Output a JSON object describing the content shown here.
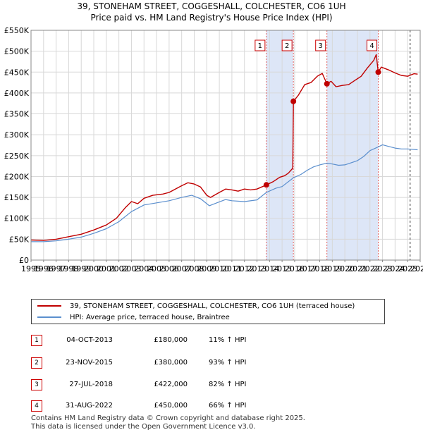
{
  "title_line1": "39, STONEHAM STREET, COGGESHALL, COLCHESTER, CO6 1UH",
  "title_line2": "Price paid vs. HM Land Registry's House Price Index (HPI)",
  "colors": {
    "property": "#c00000",
    "hpi": "#5b8fce",
    "band": "#dde6f7",
    "marker_box": "#cc0000"
  },
  "chart_data": {
    "type": "line",
    "xlim": [
      1995,
      2026
    ],
    "ylim": [
      0,
      550000
    ],
    "yticks": [
      0,
      50000,
      100000,
      150000,
      200000,
      250000,
      300000,
      350000,
      400000,
      450000,
      500000,
      550000
    ],
    "ytick_labels": [
      "£0",
      "£50K",
      "£100K",
      "£150K",
      "£200K",
      "£250K",
      "£300K",
      "£350K",
      "£400K",
      "£450K",
      "£500K",
      "£550K"
    ],
    "xticks": [
      1995,
      1996,
      1997,
      1998,
      1999,
      2000,
      2001,
      2002,
      2003,
      2004,
      2005,
      2006,
      2007,
      2008,
      2009,
      2010,
      2011,
      2012,
      2013,
      2014,
      2015,
      2016,
      2017,
      2018,
      2019,
      2020,
      2021,
      2022,
      2023,
      2024,
      2025,
      2026
    ],
    "xtick_labels": [
      "1995",
      "1996",
      "1997",
      "1998",
      "1999",
      "2000",
      "2001",
      "2002",
      "2003",
      "2004",
      "2005",
      "2006",
      "2007",
      "2008",
      "2009",
      "2010",
      "2011",
      "2012",
      "2013",
      "2014",
      "2015",
      "2016",
      "2017",
      "2018",
      "2019",
      "2020",
      "2021",
      "2022",
      "2023",
      "2024",
      "2025",
      "2026"
    ],
    "series": [
      {
        "name": "39, STONEHAM STREET, COGGESHALL, COLCHESTER, CO6 1UH (terraced house)",
        "points": [
          [
            1995.0,
            48000
          ],
          [
            1996.0,
            47000
          ],
          [
            1997.0,
            50000
          ],
          [
            1998.0,
            56000
          ],
          [
            1999.0,
            62000
          ],
          [
            2000.0,
            72000
          ],
          [
            2001.0,
            84000
          ],
          [
            2001.8,
            100000
          ],
          [
            2002.5,
            125000
          ],
          [
            2003.0,
            140000
          ],
          [
            2003.5,
            135000
          ],
          [
            2004.0,
            148000
          ],
          [
            2004.7,
            155000
          ],
          [
            2005.5,
            158000
          ],
          [
            2006.0,
            162000
          ],
          [
            2006.5,
            170000
          ],
          [
            2007.0,
            178000
          ],
          [
            2007.5,
            185000
          ],
          [
            2008.0,
            182000
          ],
          [
            2008.5,
            175000
          ],
          [
            2009.0,
            155000
          ],
          [
            2009.3,
            150000
          ],
          [
            2010.0,
            162000
          ],
          [
            2010.5,
            170000
          ],
          [
            2011.0,
            168000
          ],
          [
            2011.5,
            165000
          ],
          [
            2012.0,
            170000
          ],
          [
            2012.5,
            168000
          ],
          [
            2013.0,
            170000
          ],
          [
            2013.75,
            180000
          ],
          [
            2014.3,
            188000
          ],
          [
            2014.8,
            198000
          ],
          [
            2015.2,
            202000
          ],
          [
            2015.5,
            208000
          ],
          [
            2015.85,
            220000
          ],
          [
            2015.9,
            380000
          ],
          [
            2016.3,
            395000
          ],
          [
            2016.8,
            420000
          ],
          [
            2017.3,
            425000
          ],
          [
            2017.8,
            440000
          ],
          [
            2018.2,
            447000
          ],
          [
            2018.57,
            422000
          ],
          [
            2018.9,
            428000
          ],
          [
            2019.3,
            415000
          ],
          [
            2019.8,
            418000
          ],
          [
            2020.3,
            420000
          ],
          [
            2020.8,
            430000
          ],
          [
            2021.3,
            440000
          ],
          [
            2021.8,
            460000
          ],
          [
            2022.3,
            478000
          ],
          [
            2022.5,
            492000
          ],
          [
            2022.66,
            450000
          ],
          [
            2022.9,
            462000
          ],
          [
            2023.5,
            455000
          ],
          [
            2024.0,
            448000
          ],
          [
            2024.5,
            442000
          ],
          [
            2025.0,
            440000
          ],
          [
            2025.5,
            446000
          ],
          [
            2025.8,
            445000
          ]
        ]
      },
      {
        "name": "HPI: Average price, terraced house, Braintree",
        "points": [
          [
            1995.0,
            44000
          ],
          [
            1996.0,
            44000
          ],
          [
            1997.0,
            46000
          ],
          [
            1998.0,
            50000
          ],
          [
            1999.0,
            55000
          ],
          [
            2000.0,
            64000
          ],
          [
            2001.0,
            75000
          ],
          [
            2002.0,
            92000
          ],
          [
            2003.0,
            116000
          ],
          [
            2004.0,
            132000
          ],
          [
            2005.0,
            137000
          ],
          [
            2006.0,
            142000
          ],
          [
            2007.0,
            150000
          ],
          [
            2007.8,
            155000
          ],
          [
            2008.5,
            147000
          ],
          [
            2009.2,
            130000
          ],
          [
            2009.8,
            137000
          ],
          [
            2010.5,
            145000
          ],
          [
            2011.0,
            142000
          ],
          [
            2012.0,
            140000
          ],
          [
            2013.0,
            144000
          ],
          [
            2013.75,
            162000
          ],
          [
            2014.5,
            172000
          ],
          [
            2015.0,
            176000
          ],
          [
            2015.9,
            197000
          ],
          [
            2016.5,
            205000
          ],
          [
            2017.0,
            215000
          ],
          [
            2017.5,
            223000
          ],
          [
            2018.0,
            228000
          ],
          [
            2018.57,
            232000
          ],
          [
            2019.0,
            230000
          ],
          [
            2019.5,
            227000
          ],
          [
            2020.0,
            228000
          ],
          [
            2020.5,
            233000
          ],
          [
            2021.0,
            238000
          ],
          [
            2021.5,
            248000
          ],
          [
            2022.0,
            262000
          ],
          [
            2022.66,
            271000
          ],
          [
            2023.0,
            276000
          ],
          [
            2023.5,
            272000
          ],
          [
            2024.0,
            268000
          ],
          [
            2024.5,
            266000
          ],
          [
            2025.0,
            266000
          ],
          [
            2025.8,
            264000
          ]
        ]
      }
    ],
    "shaded_bands": [
      [
        2013.75,
        2015.9
      ],
      [
        2018.57,
        2022.66
      ]
    ],
    "vlines": [
      2013.75,
      2015.9,
      2018.57,
      2022.66,
      2025.2
    ],
    "sale_markers": [
      {
        "label": "1",
        "x": 2013.75,
        "y": 180000
      },
      {
        "label": "2",
        "x": 2015.9,
        "y": 380000
      },
      {
        "label": "3",
        "x": 2018.57,
        "y": 422000
      },
      {
        "label": "4",
        "x": 2022.66,
        "y": 450000
      }
    ]
  },
  "legend": {
    "property_label": "39, STONEHAM STREET, COGGESHALL, COLCHESTER, CO6 1UH (terraced house)",
    "hpi_label": "HPI: Average price, terraced house, Braintree"
  },
  "sales": [
    {
      "num": "1",
      "date": "04-OCT-2013",
      "price": "£180,000",
      "hpi": "11% ↑ HPI"
    },
    {
      "num": "2",
      "date": "23-NOV-2015",
      "price": "£380,000",
      "hpi": "93% ↑ HPI"
    },
    {
      "num": "3",
      "date": "27-JUL-2018",
      "price": "£422,000",
      "hpi": "82% ↑ HPI"
    },
    {
      "num": "4",
      "date": "31-AUG-2022",
      "price": "£450,000",
      "hpi": "66% ↑ HPI"
    }
  ],
  "footer_line1": "Contains HM Land Registry data © Crown copyright and database right 2025.",
  "footer_line2": "This data is licensed under the Open Government Licence v3.0."
}
